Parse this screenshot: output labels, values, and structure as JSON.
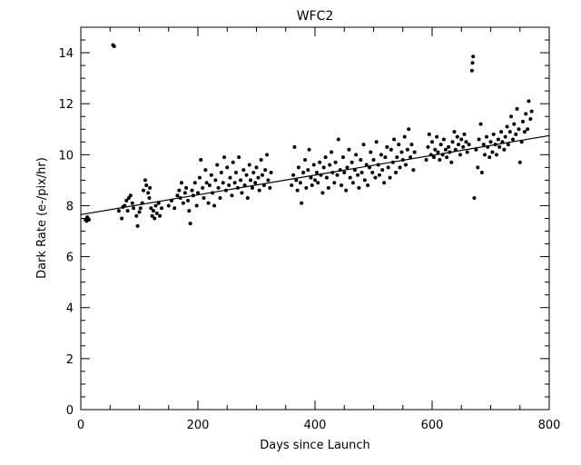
{
  "chart_data": {
    "type": "scatter",
    "title": "WFC2",
    "xlabel": "Days since Launch",
    "ylabel": "Dark Rate (e-/pix/hr)",
    "xlim": [
      0,
      800
    ],
    "ylim": [
      0,
      15
    ],
    "xticks": [
      0,
      200,
      400,
      600,
      800
    ],
    "yticks": [
      0,
      2,
      4,
      6,
      8,
      10,
      12,
      14
    ],
    "grid": false,
    "fit_line": {
      "x": [
        0,
        800
      ],
      "y": [
        7.65,
        10.75
      ]
    },
    "series": [
      {
        "values": [
          [
            8,
            7.45
          ],
          [
            10,
            7.4
          ],
          [
            12,
            7.5
          ],
          [
            14,
            7.45
          ],
          [
            11,
            7.55
          ],
          [
            55,
            14.3
          ],
          [
            57,
            14.25
          ],
          [
            65,
            7.8
          ],
          [
            70,
            7.5
          ],
          [
            72,
            7.95
          ],
          [
            75,
            8.0
          ],
          [
            78,
            8.2
          ],
          [
            80,
            7.8
          ],
          [
            82,
            8.3
          ],
          [
            85,
            8.4
          ],
          [
            88,
            8.1
          ],
          [
            90,
            7.9
          ],
          [
            95,
            7.6
          ],
          [
            97,
            7.2
          ],
          [
            100,
            7.75
          ],
          [
            102,
            7.9
          ],
          [
            105,
            8.1
          ],
          [
            107,
            8.6
          ],
          [
            110,
            9.0
          ],
          [
            112,
            8.8
          ],
          [
            115,
            8.5
          ],
          [
            117,
            8.3
          ],
          [
            118,
            8.7
          ],
          [
            120,
            7.9
          ],
          [
            122,
            7.6
          ],
          [
            124,
            7.8
          ],
          [
            126,
            7.5
          ],
          [
            128,
            8.0
          ],
          [
            130,
            7.7
          ],
          [
            133,
            8.1
          ],
          [
            135,
            7.6
          ],
          [
            138,
            7.9
          ],
          [
            150,
            8.0
          ],
          [
            155,
            8.2
          ],
          [
            160,
            7.9
          ],
          [
            165,
            8.4
          ],
          [
            168,
            8.6
          ],
          [
            170,
            8.3
          ],
          [
            172,
            8.9
          ],
          [
            175,
            8.1
          ],
          [
            178,
            8.5
          ],
          [
            180,
            8.7
          ],
          [
            183,
            8.2
          ],
          [
            185,
            7.8
          ],
          [
            187,
            7.3
          ],
          [
            190,
            8.6
          ],
          [
            192,
            8.4
          ],
          [
            195,
            8.9
          ],
          [
            198,
            8.0
          ],
          [
            200,
            8.5
          ],
          [
            203,
            9.1
          ],
          [
            205,
            9.8
          ],
          [
            208,
            8.7
          ],
          [
            210,
            8.3
          ],
          [
            213,
            9.4
          ],
          [
            215,
            8.9
          ],
          [
            218,
            8.1
          ],
          [
            220,
            8.8
          ],
          [
            223,
            9.2
          ],
          [
            225,
            8.5
          ],
          [
            228,
            8.0
          ],
          [
            230,
            9.0
          ],
          [
            233,
            9.6
          ],
          [
            235,
            8.7
          ],
          [
            238,
            8.3
          ],
          [
            240,
            9.3
          ],
          [
            243,
            8.9
          ],
          [
            245,
            9.9
          ],
          [
            248,
            8.6
          ],
          [
            250,
            9.5
          ],
          [
            253,
            8.8
          ],
          [
            255,
            9.1
          ],
          [
            258,
            8.4
          ],
          [
            260,
            9.7
          ],
          [
            263,
            8.9
          ],
          [
            265,
            9.3
          ],
          [
            268,
            8.7
          ],
          [
            270,
            9.9
          ],
          [
            273,
            9.0
          ],
          [
            275,
            8.5
          ],
          [
            278,
            9.4
          ],
          [
            280,
            8.8
          ],
          [
            283,
            9.2
          ],
          [
            285,
            8.3
          ],
          [
            288,
            9.6
          ],
          [
            290,
            9.0
          ],
          [
            293,
            8.7
          ],
          [
            295,
            9.3
          ],
          [
            298,
            8.9
          ],
          [
            300,
            9.5
          ],
          [
            303,
            9.1
          ],
          [
            305,
            8.6
          ],
          [
            308,
            9.8
          ],
          [
            310,
            9.2
          ],
          [
            313,
            8.8
          ],
          [
            315,
            9.4
          ],
          [
            318,
            10.0
          ],
          [
            320,
            9.0
          ],
          [
            323,
            8.7
          ],
          [
            325,
            9.3
          ],
          [
            360,
            8.8
          ],
          [
            363,
            9.2
          ],
          [
            365,
            10.3
          ],
          [
            368,
            9.0
          ],
          [
            370,
            8.6
          ],
          [
            372,
            9.5
          ],
          [
            375,
            8.9
          ],
          [
            377,
            8.1
          ],
          [
            380,
            9.3
          ],
          [
            383,
            9.8
          ],
          [
            385,
            8.7
          ],
          [
            388,
            9.4
          ],
          [
            390,
            10.2
          ],
          [
            393,
            9.1
          ],
          [
            395,
            8.8
          ],
          [
            398,
            9.6
          ],
          [
            400,
            9.0
          ],
          [
            403,
            9.3
          ],
          [
            405,
            8.9
          ],
          [
            408,
            9.7
          ],
          [
            410,
            9.2
          ],
          [
            413,
            8.5
          ],
          [
            415,
            9.5
          ],
          [
            418,
            9.9
          ],
          [
            420,
            9.1
          ],
          [
            423,
            8.7
          ],
          [
            425,
            9.6
          ],
          [
            428,
            10.1
          ],
          [
            430,
            9.3
          ],
          [
            433,
            8.9
          ],
          [
            435,
            9.7
          ],
          [
            438,
            9.2
          ],
          [
            440,
            10.6
          ],
          [
            443,
            9.4
          ],
          [
            445,
            8.8
          ],
          [
            448,
            9.9
          ],
          [
            450,
            9.3
          ],
          [
            453,
            8.6
          ],
          [
            455,
            9.5
          ],
          [
            458,
            10.2
          ],
          [
            460,
            9.1
          ],
          [
            463,
            9.7
          ],
          [
            465,
            8.9
          ],
          [
            468,
            9.4
          ],
          [
            470,
            10.0
          ],
          [
            473,
            9.2
          ],
          [
            475,
            8.7
          ],
          [
            478,
            9.8
          ],
          [
            480,
            9.3
          ],
          [
            483,
            10.4
          ],
          [
            485,
            9.0
          ],
          [
            488,
            9.6
          ],
          [
            490,
            8.8
          ],
          [
            493,
            9.5
          ],
          [
            495,
            10.1
          ],
          [
            498,
            9.3
          ],
          [
            500,
            9.8
          ],
          [
            503,
            9.1
          ],
          [
            505,
            10.5
          ],
          [
            508,
            9.6
          ],
          [
            510,
            9.2
          ],
          [
            513,
            10.0
          ],
          [
            515,
            9.4
          ],
          [
            518,
            8.9
          ],
          [
            520,
            9.9
          ],
          [
            523,
            10.3
          ],
          [
            525,
            9.5
          ],
          [
            528,
            9.1
          ],
          [
            530,
            10.2
          ],
          [
            533,
            9.7
          ],
          [
            535,
            10.6
          ],
          [
            538,
            9.3
          ],
          [
            540,
            9.9
          ],
          [
            543,
            10.4
          ],
          [
            545,
            9.5
          ],
          [
            548,
            10.1
          ],
          [
            550,
            9.8
          ],
          [
            553,
            10.7
          ],
          [
            555,
            9.6
          ],
          [
            558,
            10.2
          ],
          [
            560,
            11.0
          ],
          [
            563,
            9.9
          ],
          [
            565,
            10.4
          ],
          [
            568,
            9.4
          ],
          [
            570,
            10.1
          ],
          [
            590,
            9.8
          ],
          [
            593,
            10.3
          ],
          [
            595,
            10.8
          ],
          [
            598,
            10.0
          ],
          [
            600,
            10.5
          ],
          [
            603,
            9.9
          ],
          [
            605,
            10.2
          ],
          [
            608,
            10.7
          ],
          [
            610,
            10.1
          ],
          [
            613,
            9.8
          ],
          [
            615,
            10.4
          ],
          [
            618,
            10.0
          ],
          [
            620,
            10.6
          ],
          [
            623,
            10.2
          ],
          [
            625,
            9.9
          ],
          [
            628,
            10.3
          ],
          [
            630,
            10.1
          ],
          [
            633,
            9.7
          ],
          [
            635,
            10.5
          ],
          [
            638,
            10.9
          ],
          [
            640,
            10.2
          ],
          [
            643,
            10.7
          ],
          [
            645,
            10.4
          ],
          [
            648,
            10.0
          ],
          [
            650,
            10.6
          ],
          [
            653,
            10.3
          ],
          [
            655,
            10.8
          ],
          [
            658,
            10.5
          ],
          [
            660,
            10.1
          ],
          [
            663,
            10.4
          ],
          [
            668,
            13.3
          ],
          [
            669,
            13.6
          ],
          [
            670,
            13.85
          ],
          [
            672,
            8.3
          ],
          [
            675,
            10.2
          ],
          [
            678,
            9.5
          ],
          [
            680,
            10.6
          ],
          [
            683,
            11.2
          ],
          [
            685,
            9.3
          ],
          [
            688,
            10.4
          ],
          [
            690,
            10.0
          ],
          [
            693,
            10.7
          ],
          [
            695,
            10.3
          ],
          [
            698,
            9.9
          ],
          [
            700,
            10.5
          ],
          [
            703,
            10.1
          ],
          [
            705,
            10.8
          ],
          [
            708,
            10.4
          ],
          [
            710,
            10.0
          ],
          [
            713,
            10.6
          ],
          [
            715,
            10.3
          ],
          [
            718,
            10.9
          ],
          [
            720,
            10.5
          ],
          [
            723,
            10.2
          ],
          [
            725,
            10.7
          ],
          [
            728,
            11.1
          ],
          [
            730,
            10.4
          ],
          [
            733,
            10.9
          ],
          [
            735,
            11.5
          ],
          [
            738,
            10.6
          ],
          [
            740,
            11.2
          ],
          [
            743,
            10.8
          ],
          [
            745,
            11.8
          ],
          [
            748,
            11.0
          ],
          [
            750,
            9.7
          ],
          [
            753,
            10.5
          ],
          [
            755,
            11.3
          ],
          [
            758,
            10.9
          ],
          [
            760,
            11.6
          ],
          [
            763,
            11.0
          ],
          [
            765,
            12.1
          ],
          [
            768,
            11.4
          ],
          [
            770,
            11.7
          ]
        ]
      }
    ]
  }
}
